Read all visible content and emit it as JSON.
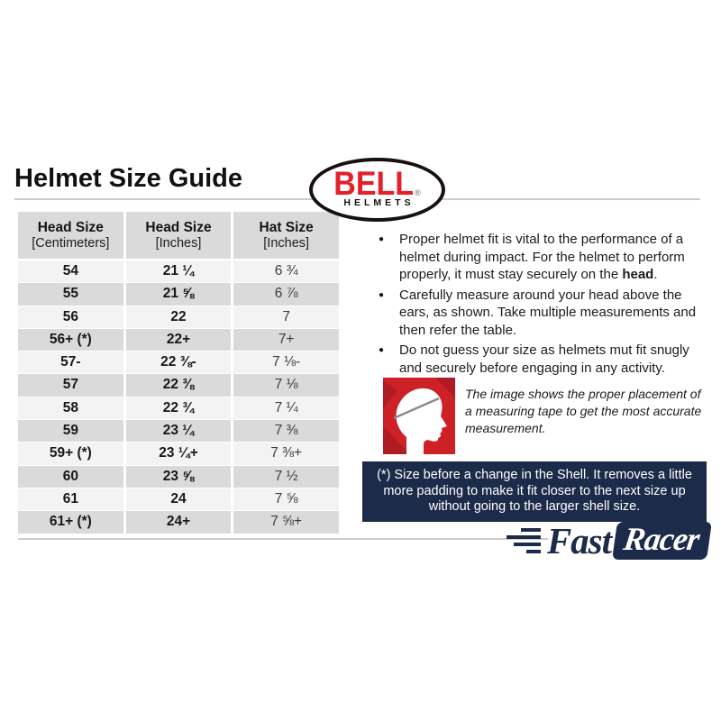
{
  "page": {
    "title": "Helmet Size Guide"
  },
  "bell_logo": {
    "brand": "BELL",
    "registered": "®",
    "sub": "HELMETS"
  },
  "size_table": {
    "columns": [
      {
        "title": "Head Size",
        "unit": "[Centimeters]"
      },
      {
        "title": "Head Size",
        "unit": "[Inches]"
      },
      {
        "title": "Hat Size",
        "unit": "[Inches]"
      }
    ],
    "rows": [
      [
        "54",
        "21 ¼",
        "6 ¾"
      ],
      [
        "55",
        "21 ⅝",
        "6 ⅞"
      ],
      [
        "56",
        "22",
        "7"
      ],
      [
        "56+ (*)",
        "22+",
        "7+"
      ],
      [
        "57-",
        "22 ⅜-",
        "7 ⅛-"
      ],
      [
        "57",
        "22 ⅜",
        "7 ⅛"
      ],
      [
        "58",
        "22 ¾",
        "7 ¼"
      ],
      [
        "59",
        "23 ¼",
        "7 ⅜"
      ],
      [
        "59+ (*)",
        "23 ¼+",
        "7 ⅜+"
      ],
      [
        "60",
        "23 ⅝",
        "7 ½"
      ],
      [
        "61",
        "24",
        "7 ⅝"
      ],
      [
        "61+ (*)",
        "24+",
        "7 ⅝+"
      ]
    ]
  },
  "bullets": [
    {
      "text": "Proper helmet fit is vital to the performance of a helmet during impact. For the helmet to perform properly, it must stay securely on the ",
      "bold": "head",
      "suffix": "."
    },
    {
      "text": "Carefully measure around your head above the ears, as shown. Take multiple measurements and then refer the table.",
      "bold": "",
      "suffix": ""
    },
    {
      "text": "Do not guess your size as helmets mut fit snugly and securely before engaging in any activity.",
      "bold": "",
      "suffix": ""
    }
  ],
  "figure": {
    "caption": "The image shows the proper placement of a measuring tape to get the most accurate measurement."
  },
  "note_banner": {
    "text": "(*) Size before a change in the Shell. It removes a little more padding to make it fit closer to the next size up without going to the larger shell size."
  },
  "footer_logo": {
    "fast": "Fast",
    "racer": "Racer"
  },
  "colors": {
    "bell_red": "#e4202a",
    "figure_red": "#cd2027",
    "figure_red_dark": "#b01c24",
    "navy": "#1d2b4a",
    "row_light": "#f3f3f3",
    "row_dark": "#dadada",
    "divider_gray": "#cccccc",
    "tape_gray": "#8a8a8a"
  }
}
